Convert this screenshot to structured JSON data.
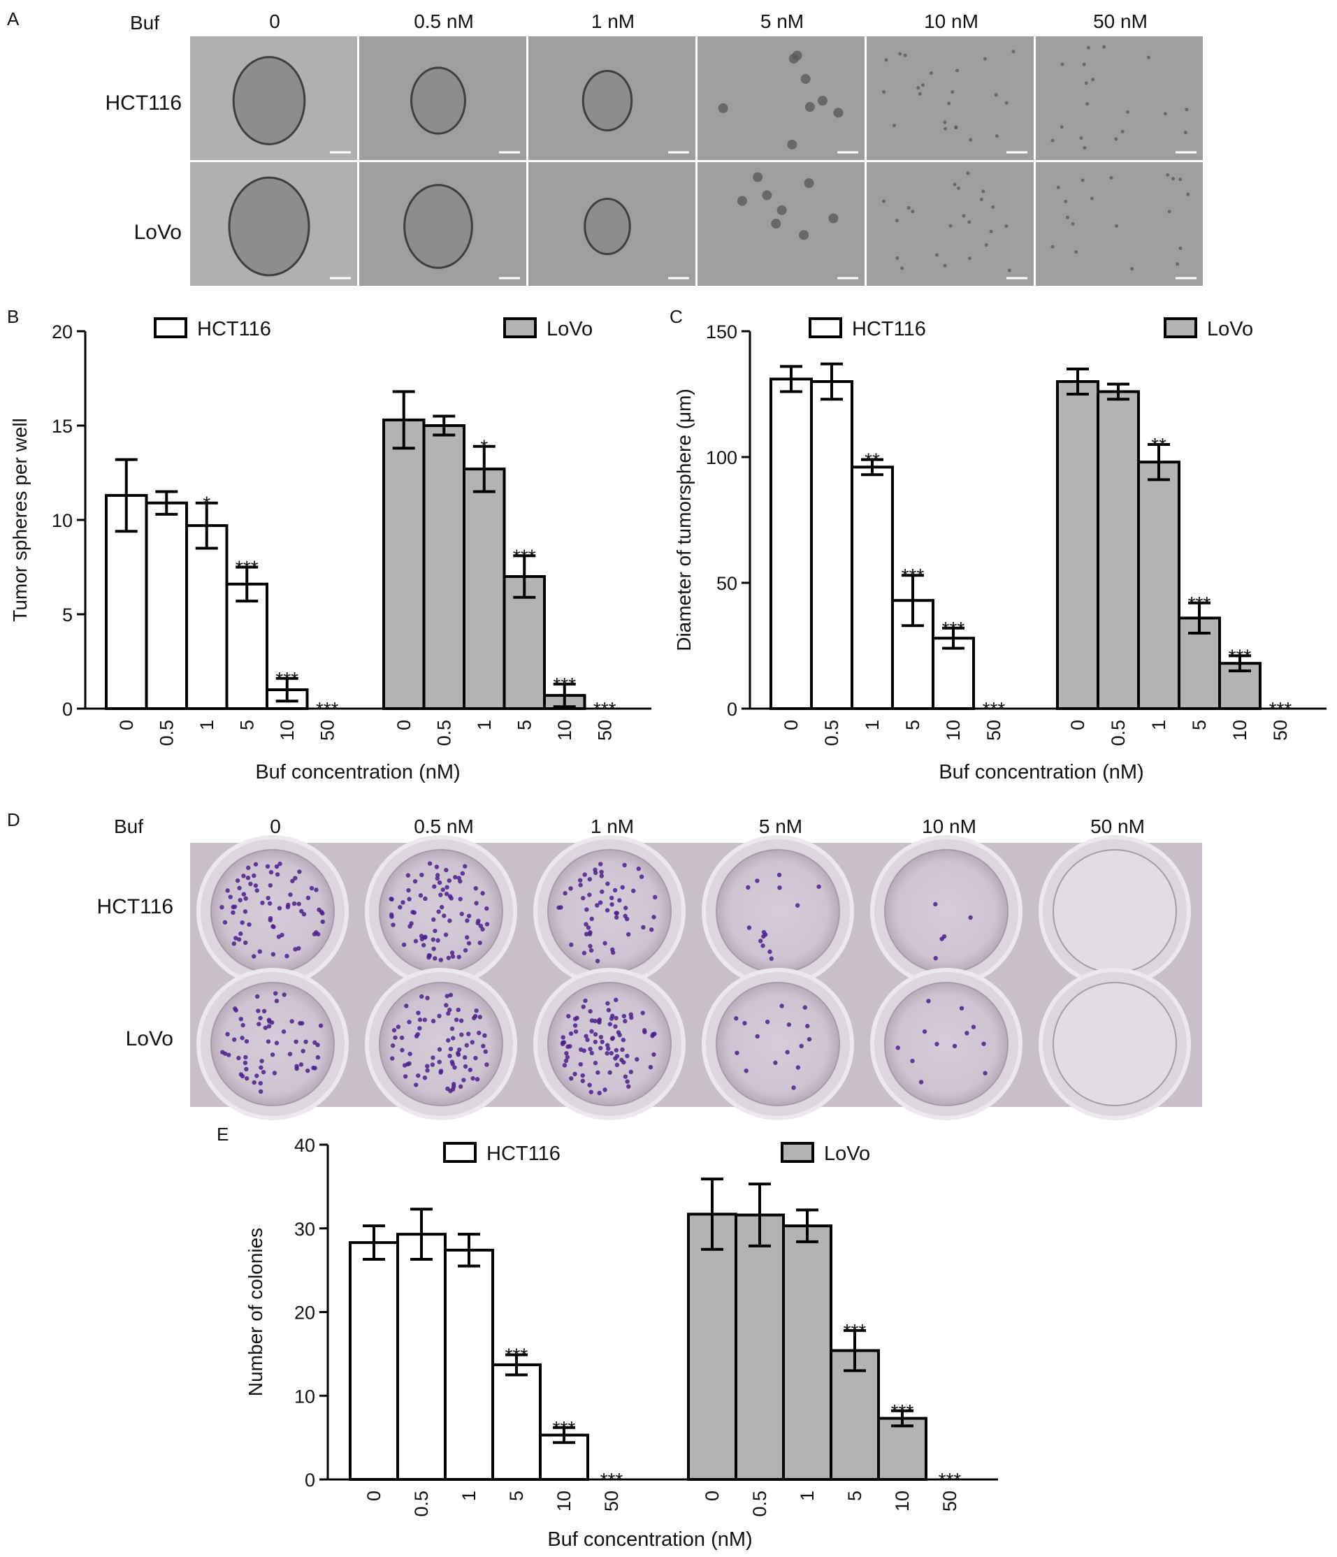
{
  "panel_labels": {
    "a": "A",
    "b": "B",
    "c": "C",
    "d": "D",
    "e": "E"
  },
  "treatment_label": "Buf",
  "concentrations": [
    "0",
    "0.5 nM",
    "1 nM",
    "5 nM",
    "10 nM",
    "50 nM"
  ],
  "cell_lines": [
    "HCT116",
    "LoVo"
  ],
  "colors": {
    "hct116_fill": "#ffffff",
    "lovo_fill": "#b3b3b3",
    "bar_stroke": "#000000",
    "micrograph_bg": "#a7a7a7",
    "plate_bg": "#c9bfc8",
    "stain": "#4b1f8c"
  },
  "chart_data": [
    {
      "id": "B",
      "type": "bar",
      "xlabel": "Buf concentration (nM)",
      "ylabel": "Tumor spheres per well",
      "ylim": [
        0,
        20
      ],
      "yticks": [
        "0",
        "5",
        "10",
        "15",
        "20"
      ],
      "categories": [
        "0",
        "0.5",
        "1",
        "5",
        "10",
        "50"
      ],
      "series": [
        {
          "name": "HCT116",
          "values": [
            11.3,
            10.9,
            9.7,
            6.6,
            1.0,
            0
          ],
          "errors": [
            1.9,
            0.6,
            1.2,
            0.9,
            0.6,
            0
          ],
          "sig": [
            "",
            "",
            "*",
            "***",
            "***",
            "***"
          ]
        },
        {
          "name": "LoVo",
          "values": [
            15.3,
            15.0,
            12.7,
            7.0,
            0.7,
            0
          ],
          "errors": [
            1.5,
            0.5,
            1.2,
            1.1,
            0.6,
            0
          ],
          "sig": [
            "",
            "",
            "*",
            "***",
            "***",
            "***"
          ]
        }
      ],
      "legend": "top"
    },
    {
      "id": "C",
      "type": "bar",
      "xlabel": "Buf concentration (nM)",
      "ylabel": "Diameter of tumorsphere (μm)",
      "ylim": [
        0,
        150
      ],
      "yticks": [
        "0",
        "50",
        "100",
        "150"
      ],
      "categories": [
        "0",
        "0.5",
        "1",
        "5",
        "10",
        "50"
      ],
      "series": [
        {
          "name": "HCT116",
          "values": [
            131,
            130,
            96,
            43,
            28,
            0
          ],
          "errors": [
            5,
            7,
            3,
            10,
            4,
            0
          ],
          "sig": [
            "",
            "",
            "**",
            "***",
            "***",
            "***"
          ]
        },
        {
          "name": "LoVo",
          "values": [
            130,
            126,
            98,
            36,
            18,
            0
          ],
          "errors": [
            5,
            3,
            7,
            6,
            3,
            0
          ],
          "sig": [
            "",
            "",
            "**",
            "***",
            "***",
            "***"
          ]
        }
      ],
      "legend": "top"
    },
    {
      "id": "E",
      "type": "bar",
      "xlabel": "Buf concentration (nM)",
      "ylabel": "Number of colonies",
      "ylim": [
        0,
        40
      ],
      "yticks": [
        "0",
        "10",
        "20",
        "30",
        "40"
      ],
      "categories": [
        "0",
        "0.5",
        "1",
        "5",
        "10",
        "50"
      ],
      "series": [
        {
          "name": "HCT116",
          "values": [
            28.3,
            29.3,
            27.4,
            13.7,
            5.3,
            0
          ],
          "errors": [
            2.0,
            3.0,
            1.9,
            1.2,
            0.9,
            0
          ],
          "sig": [
            "",
            "",
            "",
            "***",
            "***",
            "***"
          ]
        },
        {
          "name": "LoVo",
          "values": [
            31.7,
            31.6,
            30.3,
            15.4,
            7.3,
            0
          ],
          "errors": [
            4.2,
            3.7,
            1.9,
            2.4,
            0.9,
            0
          ],
          "sig": [
            "",
            "",
            "",
            "***",
            "***",
            "***"
          ]
        }
      ],
      "legend": "top"
    }
  ]
}
